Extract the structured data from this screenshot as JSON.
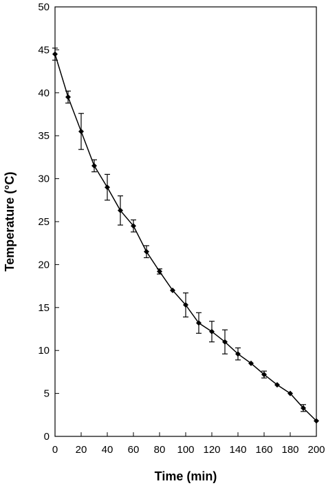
{
  "chart_data": {
    "type": "line",
    "title": "",
    "xlabel": "Time (min)",
    "ylabel": "Temperature (°C)",
    "xlim": [
      0,
      200
    ],
    "ylim": [
      0,
      50
    ],
    "xticks": [
      0,
      20,
      40,
      60,
      80,
      100,
      120,
      140,
      160,
      180,
      200
    ],
    "yticks": [
      0,
      5,
      10,
      15,
      20,
      25,
      30,
      35,
      40,
      45,
      50
    ],
    "grid": false,
    "legend": "none",
    "marker": "diamond",
    "series": [
      {
        "x": [
          0,
          10,
          20,
          30,
          40,
          50,
          60,
          70,
          80,
          90,
          100,
          110,
          120,
          130,
          140,
          150,
          160,
          170,
          180,
          190,
          200
        ],
        "y": [
          44.5,
          39.5,
          35.5,
          31.5,
          29,
          26.3,
          24.5,
          21.5,
          19.2,
          17,
          15.3,
          13.2,
          12.2,
          11,
          9.6,
          8.5,
          7.2,
          6,
          5,
          3.3,
          1.8
        ],
        "error": [
          0.7,
          0.7,
          2.1,
          0.7,
          1.5,
          1.7,
          0.7,
          0.7,
          0.3,
          0,
          1.4,
          1.2,
          1.2,
          1.4,
          0.7,
          0,
          0.4,
          0,
          0,
          0.4,
          0
        ]
      }
    ]
  }
}
